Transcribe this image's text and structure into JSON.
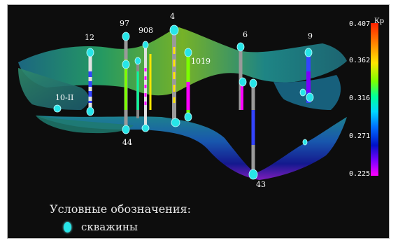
{
  "window": {
    "title": ""
  },
  "wells": [
    {
      "id": "12",
      "label": "12"
    },
    {
      "id": "97",
      "label": "97"
    },
    {
      "id": "908",
      "label": "908"
    },
    {
      "id": "4",
      "label": "4"
    },
    {
      "id": "1019",
      "label": "1019"
    },
    {
      "id": "6",
      "label": "6"
    },
    {
      "id": "9",
      "label": "9"
    },
    {
      "id": "10-II",
      "label": "10-II"
    },
    {
      "id": "44",
      "label": "44"
    },
    {
      "id": "43",
      "label": "43"
    }
  ],
  "colorbar": {
    "axis_label": "Кр",
    "ticks": [
      "0.407",
      "0.362",
      "0.316",
      "0.271",
      "0.225"
    ],
    "min": 0.225,
    "max": 0.407,
    "colors": [
      "#ff2200",
      "#ff8a00",
      "#ffe600",
      "#7cff00",
      "#00ff9a",
      "#00d8ff",
      "#0070ff",
      "#0010c8",
      "#7a00ff",
      "#ff00ff"
    ]
  },
  "legend": {
    "title": "Условные обозначения:",
    "items": [
      {
        "icon": "well-marker-icon",
        "label": "скважины"
      }
    ]
  },
  "colors": {
    "well_marker": "#27e5e8",
    "background": "#0d0d0d"
  }
}
